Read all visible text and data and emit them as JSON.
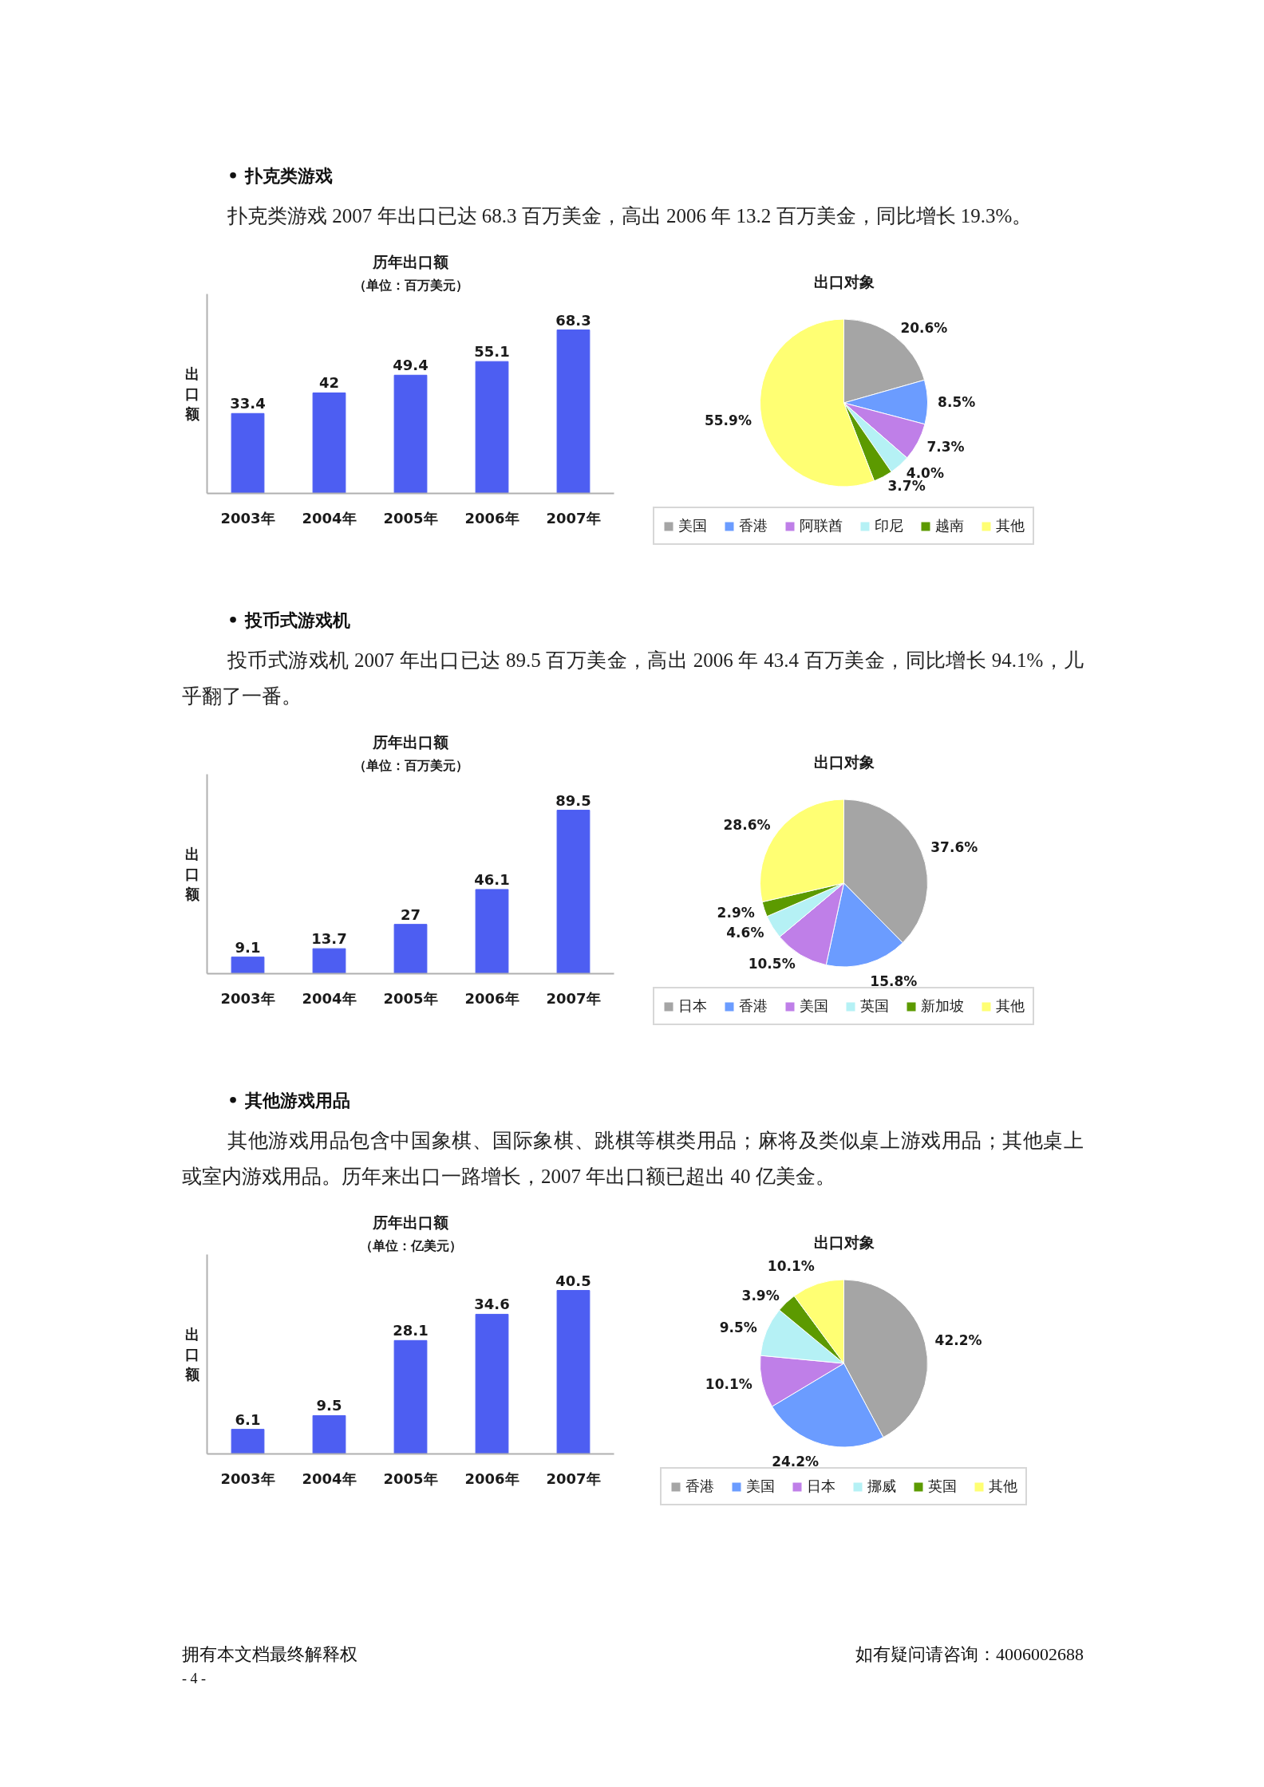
{
  "chart_data": [
    {
      "type": "bar",
      "title": "历年出口额",
      "subtitle": "（单位：百万美元）",
      "ylabel": "出口额",
      "categories": [
        "2003年",
        "2004年",
        "2005年",
        "2006年",
        "2007年"
      ],
      "values": [
        33.4,
        42,
        49.4,
        55.1,
        68.3
      ],
      "color": "#4d5ef2",
      "data_labels": true,
      "tick_labels": "x",
      "annotations": [
        "• 扑克类游戏",
        "扑克类游戏 2007 年出口已达 68.3 百万美金，高出 2006 年 13.2 百万美金，同比增长 19.3%。"
      ]
    },
    {
      "type": "pie",
      "title": "出口对象",
      "categories": [
        "美国",
        "香港",
        "阿联酋",
        "印尼",
        "越南",
        "其他"
      ],
      "values": [
        20.6,
        8.5,
        7.3,
        4.0,
        3.7,
        55.9
      ],
      "colors": [
        "#a5a5a5",
        "#6b9cff",
        "#bf7fe8",
        "#b5f1f5",
        "#5c9a00",
        "#ffff73"
      ],
      "value_labels": [
        "20.6%",
        "8.5%",
        "7.3%",
        "4.0%",
        "3.7%",
        "55.9%"
      ],
      "legend": "bottom"
    },
    {
      "type": "bar",
      "title": "历年出口额",
      "subtitle": "（单位：百万美元）",
      "ylabel": "出口额",
      "categories": [
        "2003年",
        "2004年",
        "2005年",
        "2006年",
        "2007年"
      ],
      "values": [
        9.1,
        13.7,
        27,
        46.1,
        89.5
      ],
      "color": "#4d5ef2",
      "data_labels": true,
      "tick_labels": "x",
      "annotations": [
        "• 投币式游戏机",
        "投币式游戏机 2007 年出口已达 89.5 百万美金，高出 2006 年 43.4 百万美金，同比增长 94.1%，儿乎翻了一番。"
      ]
    },
    {
      "type": "pie",
      "title": "出口对象",
      "categories": [
        "日本",
        "香港",
        "美国",
        "英国",
        "新加坡",
        "其他"
      ],
      "values": [
        37.6,
        15.8,
        10.5,
        4.6,
        2.9,
        28.6
      ],
      "colors": [
        "#a5a5a5",
        "#6b9cff",
        "#bf7fe8",
        "#b5f1f5",
        "#5c9a00",
        "#ffff73"
      ],
      "value_labels": [
        "37.6%",
        "15.8%",
        "10.5%",
        "4.6%",
        "2.9%",
        "28.6%"
      ],
      "legend": "bottom"
    },
    {
      "type": "bar",
      "title": "历年出口额",
      "subtitle": "（单位：亿美元）",
      "ylabel": "出口额",
      "categories": [
        "2003年",
        "2004年",
        "2005年",
        "2006年",
        "2007年"
      ],
      "values": [
        6.1,
        9.5,
        28.1,
        34.6,
        40.5
      ],
      "color": "#4d5ef2",
      "data_labels": true,
      "tick_labels": "x",
      "annotations": [
        "• 其他游戏用品",
        "其他游戏用品包含中国象棋、国际象棋、跳棋等棋类用品；麻将及类似桌上游戏用品；其他桌上或室内游戏用品。历年来出口一路增长，2007 年出口额已超出 40 亿美金。"
      ]
    },
    {
      "type": "pie",
      "title": "出口对象",
      "categories": [
        "香港",
        "美国",
        "日本",
        "挪威",
        "英国",
        "其他"
      ],
      "values": [
        42.2,
        24.2,
        10.1,
        9.5,
        3.9,
        10.1
      ],
      "colors": [
        "#a5a5a5",
        "#6b9cff",
        "#bf7fe8",
        "#b5f1f5",
        "#5c9a00",
        "#ffff73"
      ],
      "value_labels": [
        "42.2%",
        "24.2%",
        "10.1%",
        "9.5%",
        "3.9%",
        "10.1%"
      ],
      "legend": "bottom",
      "annotations": [
        "拥有本文档最终解释权",
        "如有疑问请咨询：4006002688",
        "- 4 -"
      ]
    }
  ]
}
